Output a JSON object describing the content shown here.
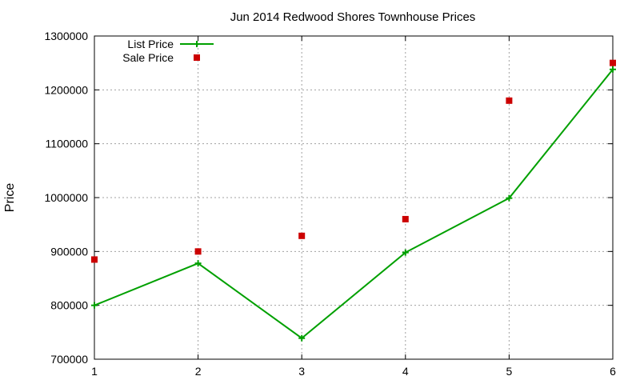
{
  "chart_data": {
    "type": "line",
    "title": "Jun 2014 Redwood Shores Townhouse Prices",
    "xlabel": "",
    "ylabel": "Price",
    "xlim": [
      1,
      6
    ],
    "ylim": [
      700000,
      1300000
    ],
    "x_ticks": [
      "1",
      "2",
      "3",
      "4",
      "5",
      "6"
    ],
    "y_ticks": [
      "700000",
      "800000",
      "900000",
      "1000000",
      "1100000",
      "1200000",
      "1300000"
    ],
    "grid": true,
    "legend_position": "top-left",
    "x": [
      1,
      2,
      3,
      4,
      5,
      6
    ],
    "series": [
      {
        "name": "List Price",
        "style": "line-with-plus-markers",
        "color": "#00a000",
        "values": [
          800000,
          878000,
          739000,
          898000,
          999000,
          1238000
        ]
      },
      {
        "name": "Sale Price",
        "style": "square-markers",
        "color": "#cc0000",
        "values": [
          885000,
          900000,
          929000,
          960000,
          1180000,
          1250000
        ]
      }
    ]
  }
}
